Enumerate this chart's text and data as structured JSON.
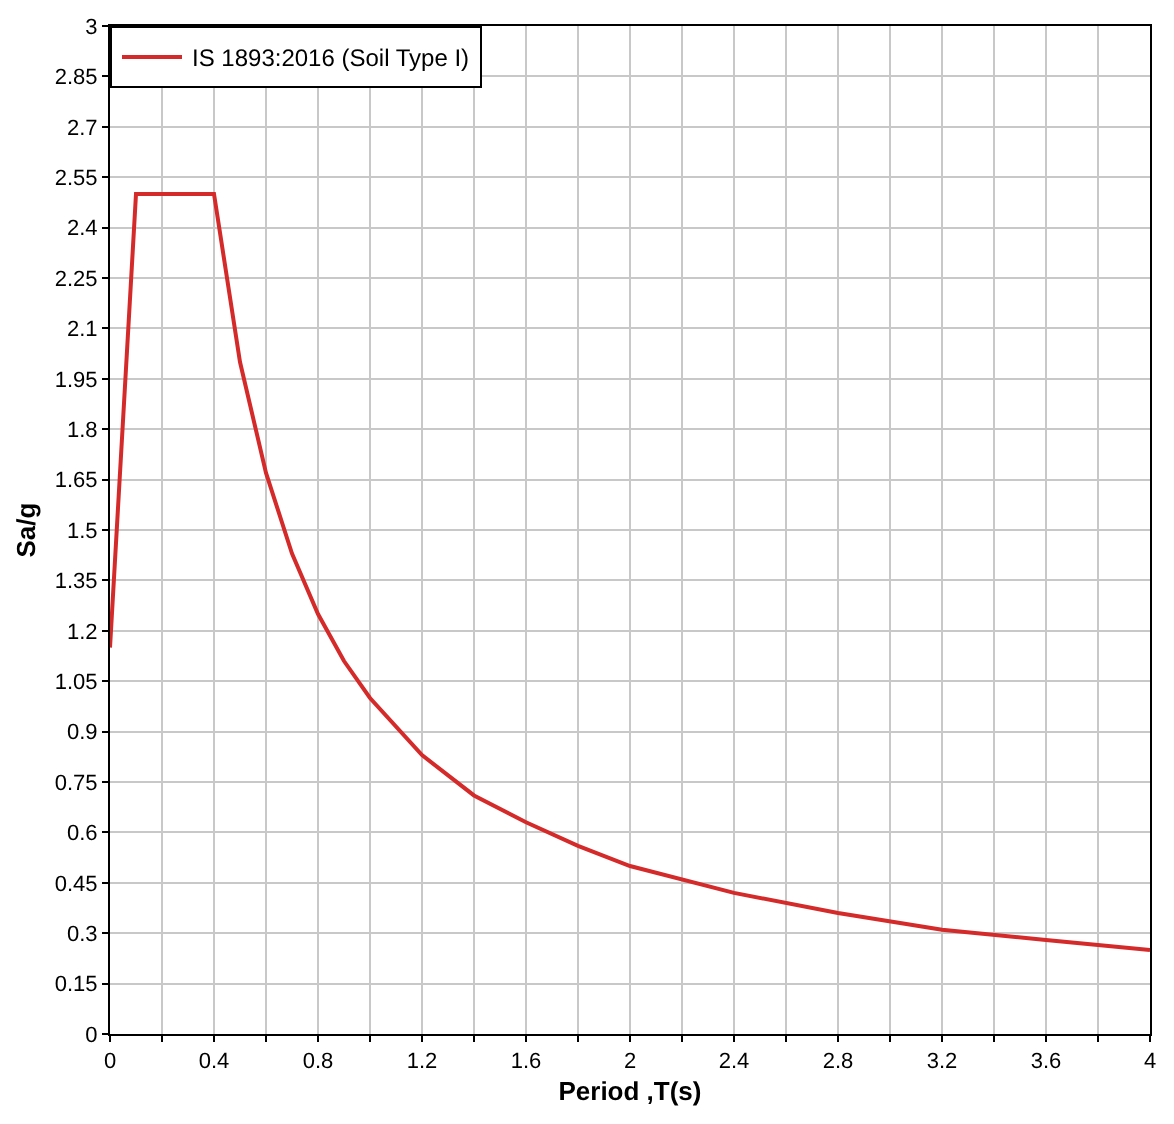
{
  "chart_data": {
    "type": "line",
    "xlabel": "Period ,T(s)",
    "ylabel": "Sa/g",
    "x": [
      0,
      0.1,
      0.4,
      0.5,
      0.6,
      0.7,
      0.8,
      0.9,
      1.0,
      1.2,
      1.4,
      1.6,
      1.8,
      2.0,
      2.4,
      2.8,
      3.2,
      3.6,
      4.0
    ],
    "series": [
      {
        "name": "IS 1893:2016 (Soil Type I)",
        "color": "#d42a2a",
        "values": [
          1.15,
          2.5,
          2.5,
          2.0,
          1.67,
          1.43,
          1.25,
          1.11,
          1.0,
          0.83,
          0.71,
          0.63,
          0.56,
          0.5,
          0.42,
          0.36,
          0.31,
          0.28,
          0.25
        ]
      }
    ],
    "xlim": [
      0,
      4
    ],
    "ylim": [
      0,
      3
    ],
    "xticks": [
      0,
      {
        "value": 0.2,
        "label": null
      },
      0.4,
      {
        "value": 0.6,
        "label": null
      },
      0.8,
      {
        "value": 1.0,
        "label": null
      },
      1.2,
      {
        "value": 1.4,
        "label": null
      },
      1.6,
      {
        "value": 1.8,
        "label": null
      },
      2,
      {
        "value": 2.2,
        "label": null
      },
      2.4,
      {
        "value": 2.6,
        "label": null
      },
      2.8,
      {
        "value": 3.0,
        "label": null
      },
      3.2,
      {
        "value": 3.4,
        "label": null
      },
      3.6,
      {
        "value": 3.8,
        "label": null
      },
      4
    ],
    "yticks": [
      0,
      0.15,
      0.3,
      0.45,
      0.6,
      0.75,
      0.9,
      1.05,
      1.2,
      1.35,
      1.5,
      1.65,
      1.8,
      1.95,
      2.1,
      2.25,
      2.4,
      2.55,
      2.7,
      2.85,
      3
    ],
    "grid": true,
    "legend": "top left",
    "marker": "none",
    "line_style": "solid"
  }
}
